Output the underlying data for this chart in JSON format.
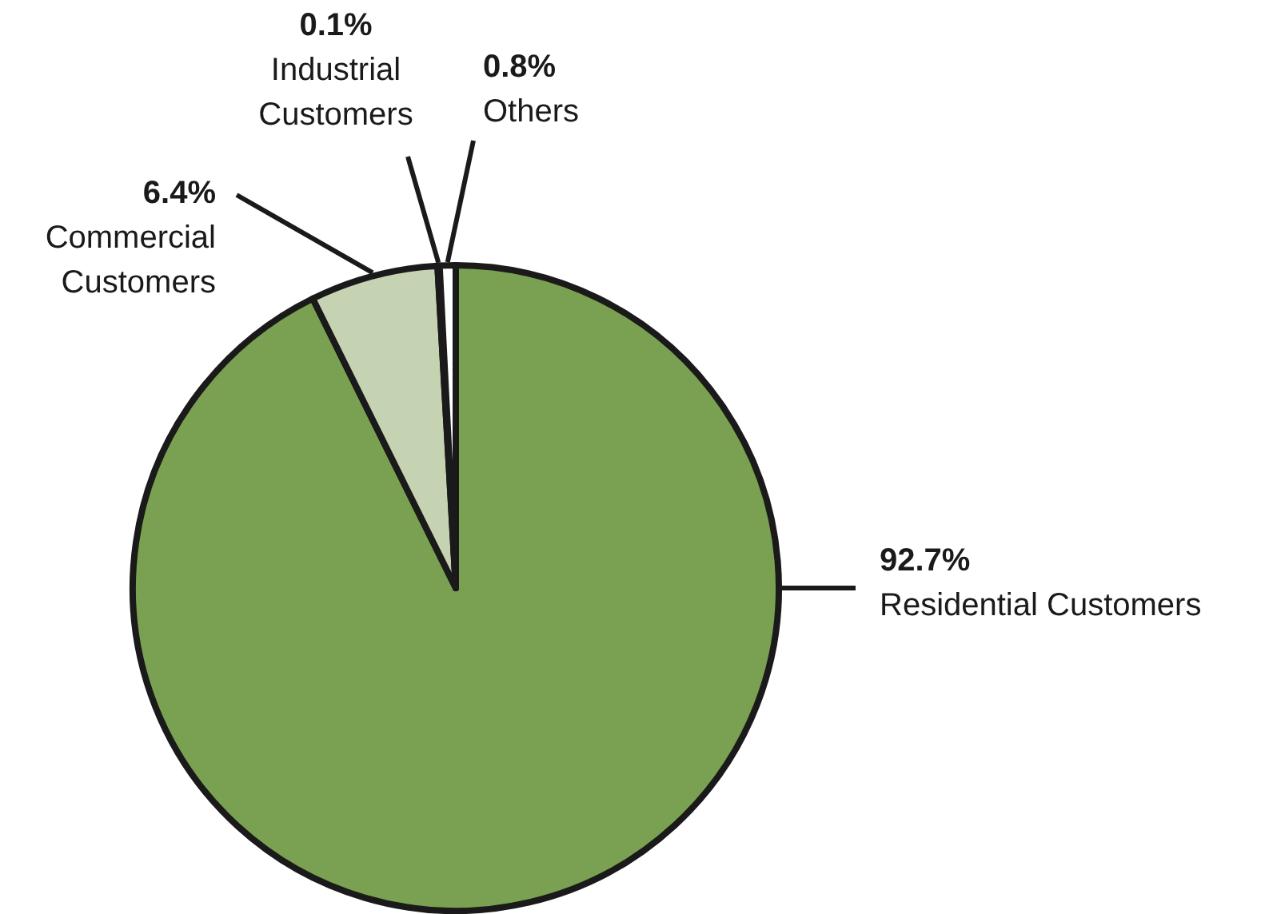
{
  "chart_data": {
    "type": "pie",
    "categories": [
      "Residential Customers",
      "Commercial Customers",
      "Industrial Customers",
      "Others"
    ],
    "values": [
      92.7,
      6.4,
      0.1,
      0.8
    ],
    "colors": [
      "#7aa052",
      "#c5d3b3",
      "#ffffff",
      "#ffffff"
    ],
    "value_labels": [
      "92.7%",
      "6.4%",
      "0.1%",
      "0.8%"
    ]
  }
}
